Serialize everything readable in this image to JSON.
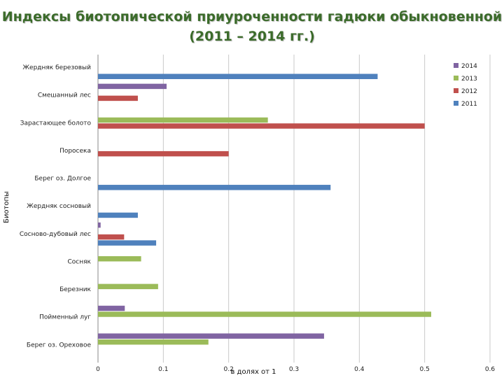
{
  "chart_data": {
    "type": "bar",
    "orientation": "horizontal",
    "title_line1": "Индексы биотопической  приуроченности гадюки обыкновенной",
    "title_line2": "(2011 – 2014 гг.)",
    "xlabel": "в долях от 1",
    "ylabel": "Биотопы",
    "xlim": [
      0,
      0.6
    ],
    "xticks": [
      "0",
      "0.1",
      "0.2",
      "0.3",
      "0.4",
      "0.5",
      "0.6"
    ],
    "grid": "vertical",
    "legend_position": "top-right",
    "categories": [
      "Жердняк березовый",
      "Смешанный лес",
      "Зарастающее болото",
      "Поросека",
      "Берег оз. Долгое",
      "Жердняк сосновый",
      "Сосново-дубовый лес",
      "Сосняк",
      "Березник",
      "Пойменный луг",
      "Берег оз. Ореховое"
    ],
    "series": [
      {
        "name": "2014",
        "color": "#8064a2",
        "values": [
          0,
          0.105,
          0,
          0,
          0,
          0,
          0.004,
          0,
          0,
          0.041,
          0.346
        ]
      },
      {
        "name": "2013",
        "color": "#9bbb59",
        "values": [
          0,
          0,
          0.26,
          0,
          0,
          0,
          0,
          0.066,
          0.092,
          0.51,
          0.169
        ]
      },
      {
        "name": "2012",
        "color": "#c0504d",
        "values": [
          0,
          0.061,
          0.5,
          0.2,
          0,
          0,
          0.04,
          0,
          0,
          0,
          0
        ]
      },
      {
        "name": "2011",
        "color": "#4f81bd",
        "values": [
          0.428,
          0,
          0,
          0,
          0.356,
          0.061,
          0.089,
          0,
          0,
          0,
          0
        ]
      }
    ]
  }
}
